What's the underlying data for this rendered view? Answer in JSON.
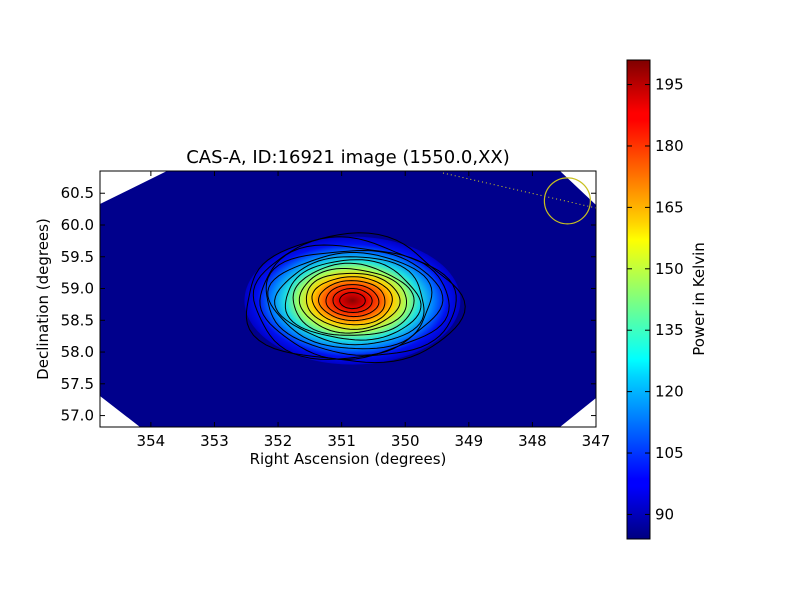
{
  "chart_data": {
    "type": "heatmap",
    "title": "CAS-A, ID:16921 image (1550.0,XX)",
    "xlabel": "Right Ascension (degrees)",
    "ylabel": "Declination (degrees)",
    "xlim": [
      354.8,
      347.0
    ],
    "ylim": [
      56.82,
      60.85
    ],
    "x_ticks": [
      "354",
      "353",
      "352",
      "351",
      "350",
      "349",
      "348",
      "347"
    ],
    "x_tick_values": [
      354,
      353,
      352,
      351,
      350,
      349,
      348,
      347
    ],
    "y_ticks": [
      "57.0",
      "57.5",
      "58.0",
      "58.5",
      "59.0",
      "59.5",
      "60.0",
      "60.5"
    ],
    "y_tick_values": [
      57.0,
      57.5,
      58.0,
      58.5,
      59.0,
      59.5,
      60.0,
      60.5
    ],
    "colorbar": {
      "label": "Power in Kelvin",
      "range": [
        84,
        201
      ],
      "ticks": [
        "90",
        "105",
        "120",
        "135",
        "150",
        "165",
        "180",
        "195"
      ],
      "tick_values": [
        90,
        105,
        120,
        135,
        150,
        165,
        180,
        195
      ],
      "colormap": "jet"
    },
    "source": {
      "ra": 350.83,
      "dec": 58.81,
      "peak_kelvin": 200,
      "background_kelvin": 88,
      "contour_count": 15
    },
    "beam_marker": {
      "ra": 347.45,
      "dec": 60.38,
      "color": "#c8c020"
    },
    "grid": false,
    "legend": "none"
  }
}
